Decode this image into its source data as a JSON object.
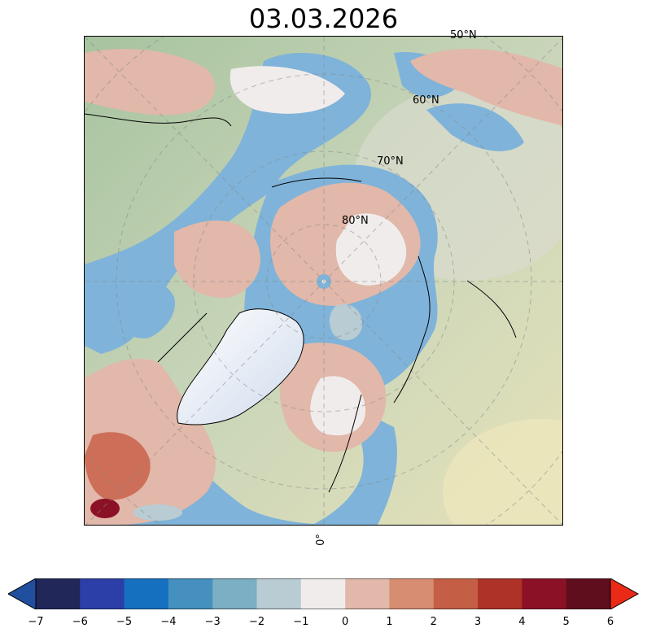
{
  "title": "03.03.2026",
  "map": {
    "projection": "north-polar-stereographic",
    "lat_labels": [
      "50°N",
      "60°N",
      "70°N",
      "80°N"
    ],
    "lon_labels": [
      "0°"
    ],
    "colors": {
      "ocean": "#7fb3d9",
      "land_low": "#a9c6a2",
      "land_high": "#e4e3c0",
      "ice_sheet": "#e8eef7",
      "anom_pos": "#e1b8a9",
      "anom_neutral": "#f1ecec",
      "anom_strong": "#c9614a"
    }
  },
  "colorbar": {
    "ticks": [
      "−7",
      "−6",
      "−5",
      "−4",
      "−3",
      "−2",
      "−1",
      "0",
      "1",
      "2",
      "3",
      "4",
      "5",
      "6"
    ],
    "bins": [
      {
        "from": -7,
        "to": -6,
        "color": "#212759"
      },
      {
        "from": -6,
        "to": -5,
        "color": "#2c3fa8"
      },
      {
        "from": -5,
        "to": -4,
        "color": "#1670c0"
      },
      {
        "from": -4,
        "to": -3,
        "color": "#4590bf"
      },
      {
        "from": -3,
        "to": -2,
        "color": "#7caec4"
      },
      {
        "from": -2,
        "to": -1,
        "color": "#b9ccd3"
      },
      {
        "from": -1,
        "to": 0,
        "color": "#f1ecec"
      },
      {
        "from": 0,
        "to": 1,
        "color": "#e1b8a9"
      },
      {
        "from": 1,
        "to": 2,
        "color": "#d68d71"
      },
      {
        "from": 2,
        "to": 3,
        "color": "#c45f45"
      },
      {
        "from": 3,
        "to": 4,
        "color": "#ae3227"
      },
      {
        "from": 4,
        "to": 5,
        "color": "#8b1127"
      },
      {
        "from": 5,
        "to": 6,
        "color": "#5f0e1e"
      }
    ],
    "under_color": "#1f4f9e",
    "over_color": "#ea2a17"
  }
}
